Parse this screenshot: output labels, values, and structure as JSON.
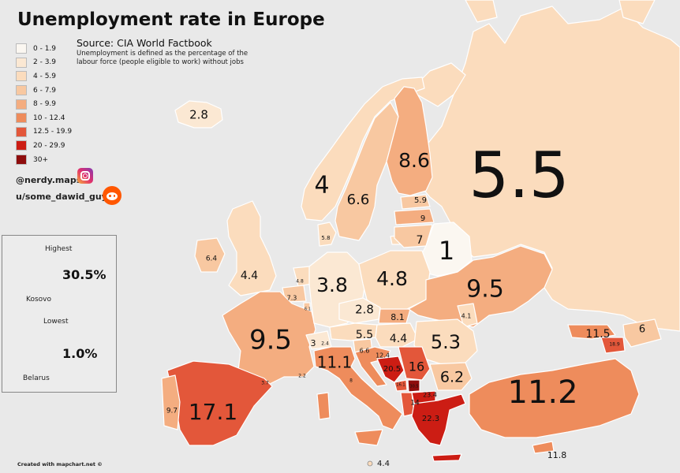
{
  "title": "Unemployment rate in Europe",
  "source": "Source: CIA World Factbook",
  "definition_line1": "Unemployment is defined as the percentage of the",
  "definition_line2": "labour force (people eligible to work) without jobs",
  "legend": [
    {
      "label": "0 - 1.9",
      "color": "#fbf7f1"
    },
    {
      "label": "2 - 3.9",
      "color": "#fbe8d3"
    },
    {
      "label": "4 - 5.9",
      "color": "#fbdcbd"
    },
    {
      "label": "6 - 7.9",
      "color": "#f8c8a1"
    },
    {
      "label": "8 - 9.9",
      "color": "#f4ad80"
    },
    {
      "label": "10 - 12.4",
      "color": "#ee8c5c"
    },
    {
      "label": "12.5 - 19.9",
      "color": "#e3573a"
    },
    {
      "label": "20 - 29.9",
      "color": "#cc1d14"
    },
    {
      "label": "30+",
      "color": "#8e0d0d"
    }
  ],
  "social": {
    "instagram": "@nerdy.maps",
    "instagram_icon": "instagram-icon",
    "reddit": "u/some_dawid_guy",
    "reddit_icon": "reddit-icon"
  },
  "extremes": {
    "highest_label": "Highest",
    "highest_value": "30.5%",
    "highest_country": "Kosovo",
    "lowest_label": "Lowest",
    "lowest_value": "1.0%",
    "lowest_country": "Belarus"
  },
  "credit": "Created with mapchart.net ©",
  "colors": {
    "sea": "#e9e9e9",
    "border": "#ffffff"
  },
  "values": [
    {
      "country": "Russia",
      "value": "5.5"
    },
    {
      "country": "Iceland",
      "value": "2.8"
    },
    {
      "country": "Norway",
      "value": "4"
    },
    {
      "country": "Sweden",
      "value": "6.6"
    },
    {
      "country": "Finland",
      "value": "8.6"
    },
    {
      "country": "Estonia",
      "value": "5.9"
    },
    {
      "country": "Latvia",
      "value": "9"
    },
    {
      "country": "Lithuania",
      "value": "7"
    },
    {
      "country": "Belarus",
      "value": "1"
    },
    {
      "country": "Denmark",
      "value": "5.8"
    },
    {
      "country": "Ireland",
      "value": "6.4"
    },
    {
      "country": "United Kingdom",
      "value": "4.4"
    },
    {
      "country": "Netherlands",
      "value": "4.8"
    },
    {
      "country": "Belgium",
      "value": "7.3"
    },
    {
      "country": "Luxembourg",
      "value": "6.1"
    },
    {
      "country": "Germany",
      "value": "3.8"
    },
    {
      "country": "Poland",
      "value": "4.8"
    },
    {
      "country": "Ukraine",
      "value": "9.5"
    },
    {
      "country": "Czech Republic",
      "value": "2.8"
    },
    {
      "country": "Slovakia",
      "value": "8.1"
    },
    {
      "country": "Moldova",
      "value": "4.1"
    },
    {
      "country": "France",
      "value": "9.5"
    },
    {
      "country": "Switzerland",
      "value": "3"
    },
    {
      "country": "Liechtenstein",
      "value": "2.4"
    },
    {
      "country": "Austria",
      "value": "5.5"
    },
    {
      "country": "Hungary",
      "value": "4.4"
    },
    {
      "country": "Romania",
      "value": "5.3"
    },
    {
      "country": "Slovenia",
      "value": "6.6"
    },
    {
      "country": "Croatia",
      "value": "12.4"
    },
    {
      "country": "Monaco",
      "value": "2.2"
    },
    {
      "country": "Andorra",
      "value": "3.7"
    },
    {
      "country": "Italy",
      "value": "11.1"
    },
    {
      "country": "San Marino",
      "value": "8"
    },
    {
      "country": "Bosnia and Herzegovina",
      "value": "20.5"
    },
    {
      "country": "Serbia",
      "value": "16"
    },
    {
      "country": "Montenegro",
      "value": "16.1"
    },
    {
      "country": "Kosovo",
      "value": "30.5"
    },
    {
      "country": "North Macedonia",
      "value": "23.4"
    },
    {
      "country": "Albania",
      "value": "14"
    },
    {
      "country": "Bulgaria",
      "value": "6.2"
    },
    {
      "country": "Greece",
      "value": "22.3"
    },
    {
      "country": "Turkey",
      "value": "11.2"
    },
    {
      "country": "Georgia",
      "value": "11.5"
    },
    {
      "country": "Armenia",
      "value": "18.9"
    },
    {
      "country": "Azerbaijan",
      "value": "6"
    },
    {
      "country": "Spain",
      "value": "17.1"
    },
    {
      "country": "Portugal",
      "value": "9.7"
    },
    {
      "country": "Cyprus",
      "value": "11.8"
    },
    {
      "country": "Malta",
      "value": "4.4"
    }
  ]
}
